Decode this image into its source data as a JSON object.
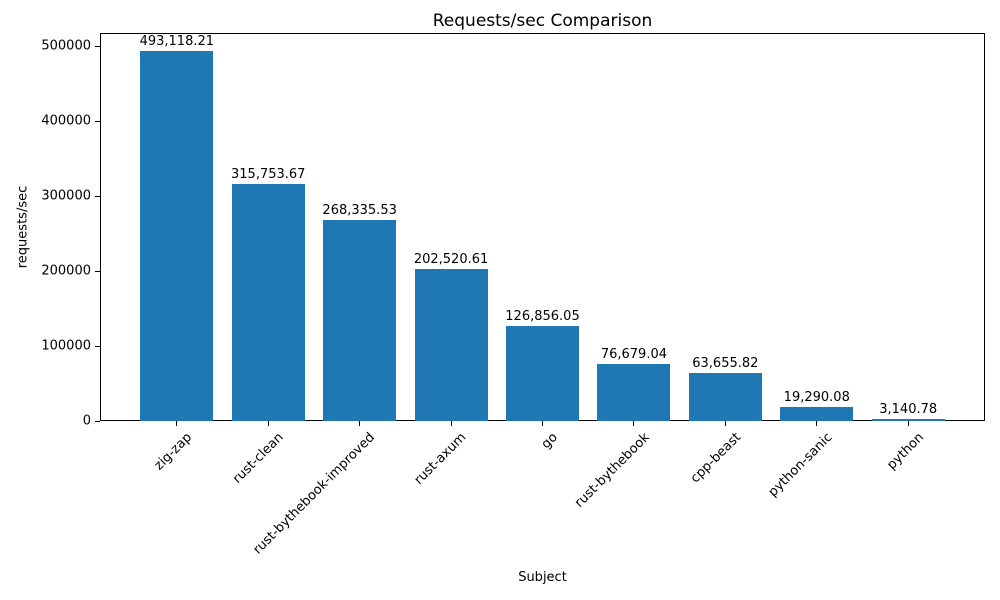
{
  "chart_data": {
    "type": "bar",
    "title": "Requests/sec Comparison",
    "xlabel": "Subject",
    "ylabel": "requests/sec",
    "categories": [
      "zig-zap",
      "rust-clean",
      "rust-bythebook-improved",
      "rust-axum",
      "go",
      "rust-bythebook",
      "cpp-beast",
      "python-sanic",
      "python"
    ],
    "values": [
      493118.21,
      315753.67,
      268335.53,
      202520.61,
      126856.05,
      76679.04,
      63655.82,
      19290.08,
      3140.78
    ],
    "value_labels": [
      "493,118.21",
      "315,753.67",
      "268,335.53",
      "202,520.61",
      "126,856.05",
      "76,679.04",
      "63,655.82",
      "19,290.08",
      "3,140.78"
    ],
    "yticks": [
      0,
      100000,
      200000,
      300000,
      400000,
      500000
    ],
    "ylim": [
      0,
      517774
    ],
    "xlim": [
      -0.84,
      8.84
    ],
    "bar_width_units": 0.8,
    "bar_color": "#1f77b4",
    "axis_color": "#000000",
    "grid": false,
    "legend_position": "none",
    "x_tick_rotation_deg": 45
  }
}
